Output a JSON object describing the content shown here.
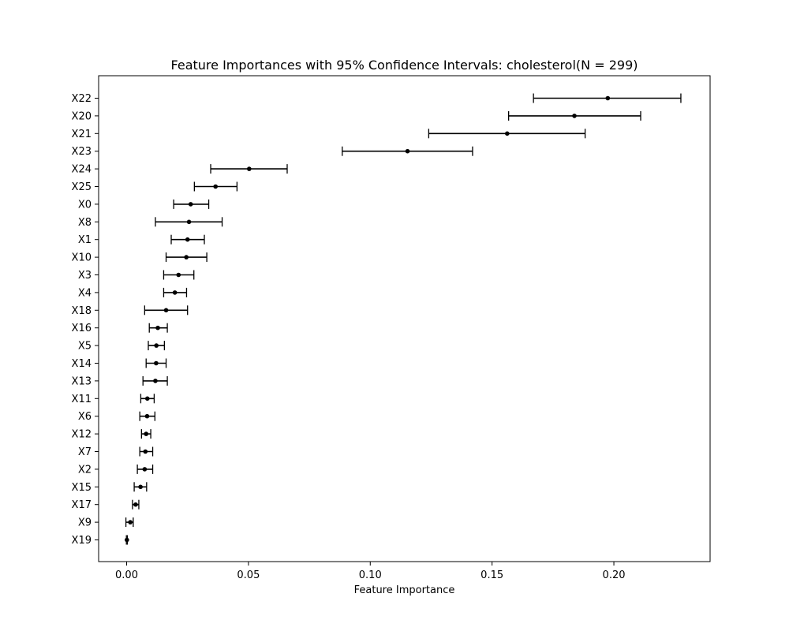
{
  "chart_data": {
    "type": "scatter",
    "title": "Feature Importances with 95% Confidence Intervals: cholesterol(N = 299)",
    "xlabel": "Feature Importance",
    "ylabel": "",
    "xlim": [
      -0.0115,
      0.2395
    ],
    "xticks": [
      0.0,
      0.05,
      0.1,
      0.15,
      0.2
    ],
    "xtick_labels": [
      "0.00",
      "0.05",
      "0.10",
      "0.15",
      "0.20"
    ],
    "grid": false,
    "legend": false,
    "marker_color": "#000000",
    "errorbar_color": "#000000",
    "features": [
      {
        "name": "X22",
        "value": 0.1975,
        "ci_low": 0.167,
        "ci_high": 0.2275
      },
      {
        "name": "X20",
        "value": 0.1838,
        "ci_low": 0.1568,
        "ci_high": 0.211
      },
      {
        "name": "X21",
        "value": 0.1562,
        "ci_low": 0.124,
        "ci_high": 0.1882
      },
      {
        "name": "X23",
        "value": 0.1153,
        "ci_low": 0.0885,
        "ci_high": 0.142
      },
      {
        "name": "X24",
        "value": 0.0503,
        "ci_low": 0.0345,
        "ci_high": 0.0659
      },
      {
        "name": "X25",
        "value": 0.0365,
        "ci_low": 0.0278,
        "ci_high": 0.0453
      },
      {
        "name": "X0",
        "value": 0.0263,
        "ci_low": 0.0193,
        "ci_high": 0.0337
      },
      {
        "name": "X8",
        "value": 0.0256,
        "ci_low": 0.0118,
        "ci_high": 0.0392
      },
      {
        "name": "X1",
        "value": 0.025,
        "ci_low": 0.0183,
        "ci_high": 0.0319
      },
      {
        "name": "X10",
        "value": 0.0245,
        "ci_low": 0.0162,
        "ci_high": 0.0329
      },
      {
        "name": "X3",
        "value": 0.0213,
        "ci_low": 0.0152,
        "ci_high": 0.0276
      },
      {
        "name": "X4",
        "value": 0.0198,
        "ci_low": 0.0152,
        "ci_high": 0.0246
      },
      {
        "name": "X18",
        "value": 0.0162,
        "ci_low": 0.0074,
        "ci_high": 0.025
      },
      {
        "name": "X16",
        "value": 0.0128,
        "ci_low": 0.0093,
        "ci_high": 0.0167
      },
      {
        "name": "X5",
        "value": 0.0122,
        "ci_low": 0.0089,
        "ci_high": 0.0155
      },
      {
        "name": "X14",
        "value": 0.0121,
        "ci_low": 0.008,
        "ci_high": 0.0162
      },
      {
        "name": "X13",
        "value": 0.0118,
        "ci_low": 0.0067,
        "ci_high": 0.0167
      },
      {
        "name": "X11",
        "value": 0.0085,
        "ci_low": 0.0058,
        "ci_high": 0.0113
      },
      {
        "name": "X6",
        "value": 0.0084,
        "ci_low": 0.0054,
        "ci_high": 0.0116
      },
      {
        "name": "X12",
        "value": 0.008,
        "ci_low": 0.0061,
        "ci_high": 0.0099
      },
      {
        "name": "X7",
        "value": 0.0077,
        "ci_low": 0.0054,
        "ci_high": 0.0107
      },
      {
        "name": "X2",
        "value": 0.0074,
        "ci_low": 0.0044,
        "ci_high": 0.0107
      },
      {
        "name": "X15",
        "value": 0.0057,
        "ci_low": 0.0031,
        "ci_high": 0.0082
      },
      {
        "name": "X17",
        "value": 0.0037,
        "ci_low": 0.0024,
        "ci_high": 0.005
      },
      {
        "name": "X9",
        "value": 0.0015,
        "ci_low": -0.0003,
        "ci_high": 0.0027
      },
      {
        "name": "X19",
        "value": 0.0001,
        "ci_low": -0.0001,
        "ci_high": 0.0003
      }
    ]
  }
}
